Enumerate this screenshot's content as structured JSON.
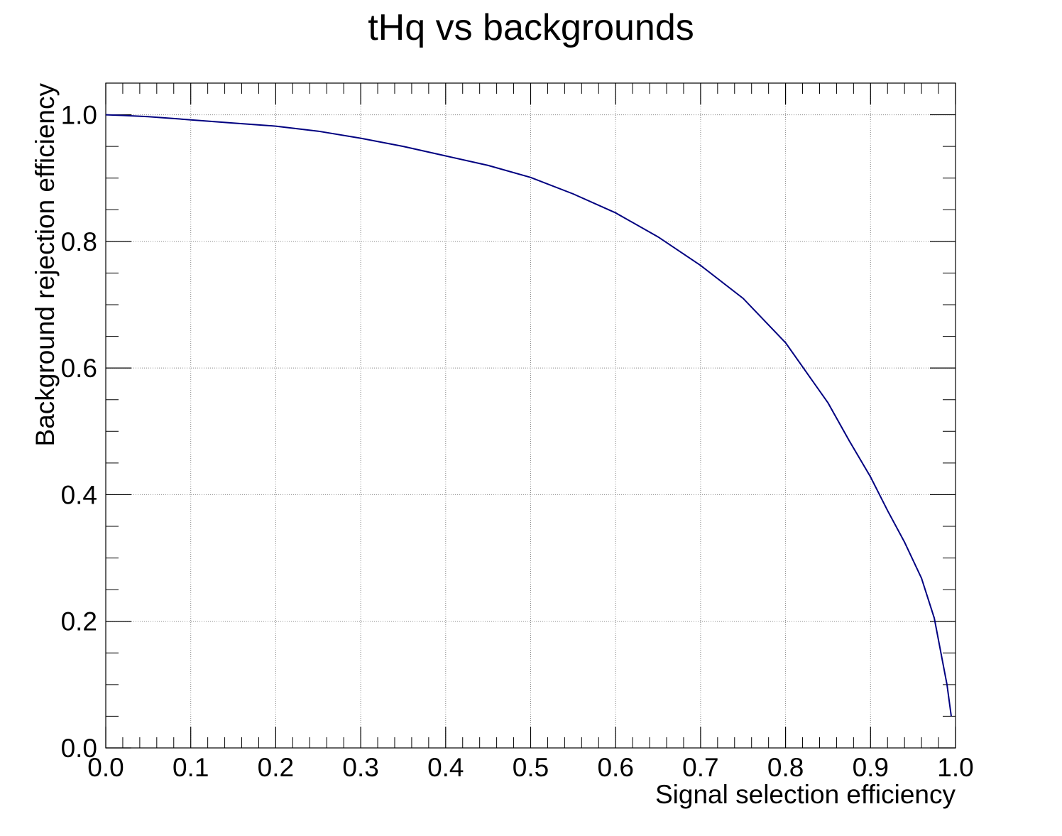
{
  "chart_data": {
    "type": "line",
    "title": "tHq vs backgrounds",
    "xlabel": "Signal selection efficiency",
    "ylabel": "Background rejection efficiency",
    "xlim": [
      0.0,
      1.0
    ],
    "ylim": [
      0.0,
      1.05
    ],
    "x_ticks": [
      "0.0",
      "0.1",
      "0.2",
      "0.3",
      "0.4",
      "0.5",
      "0.6",
      "0.7",
      "0.8",
      "0.9",
      "1.0"
    ],
    "y_ticks": [
      "0.0",
      "0.2",
      "0.4",
      "0.6",
      "0.8",
      "1.0"
    ],
    "grid": true,
    "line_color": "#000080",
    "series": [
      {
        "x": [
          0.0,
          0.02,
          0.05,
          0.1,
          0.15,
          0.2,
          0.25,
          0.3,
          0.35,
          0.4,
          0.45,
          0.5,
          0.55,
          0.6,
          0.65,
          0.7,
          0.75,
          0.8,
          0.85,
          0.875,
          0.9,
          0.92,
          0.94,
          0.96,
          0.975,
          0.99,
          0.995
        ],
        "y": [
          1.0,
          0.999,
          0.997,
          0.992,
          0.987,
          0.982,
          0.974,
          0.963,
          0.95,
          0.935,
          0.92,
          0.901,
          0.875,
          0.845,
          0.807,
          0.762,
          0.71,
          0.64,
          0.545,
          0.485,
          0.428,
          0.375,
          0.325,
          0.268,
          0.205,
          0.1,
          0.05
        ]
      }
    ]
  }
}
